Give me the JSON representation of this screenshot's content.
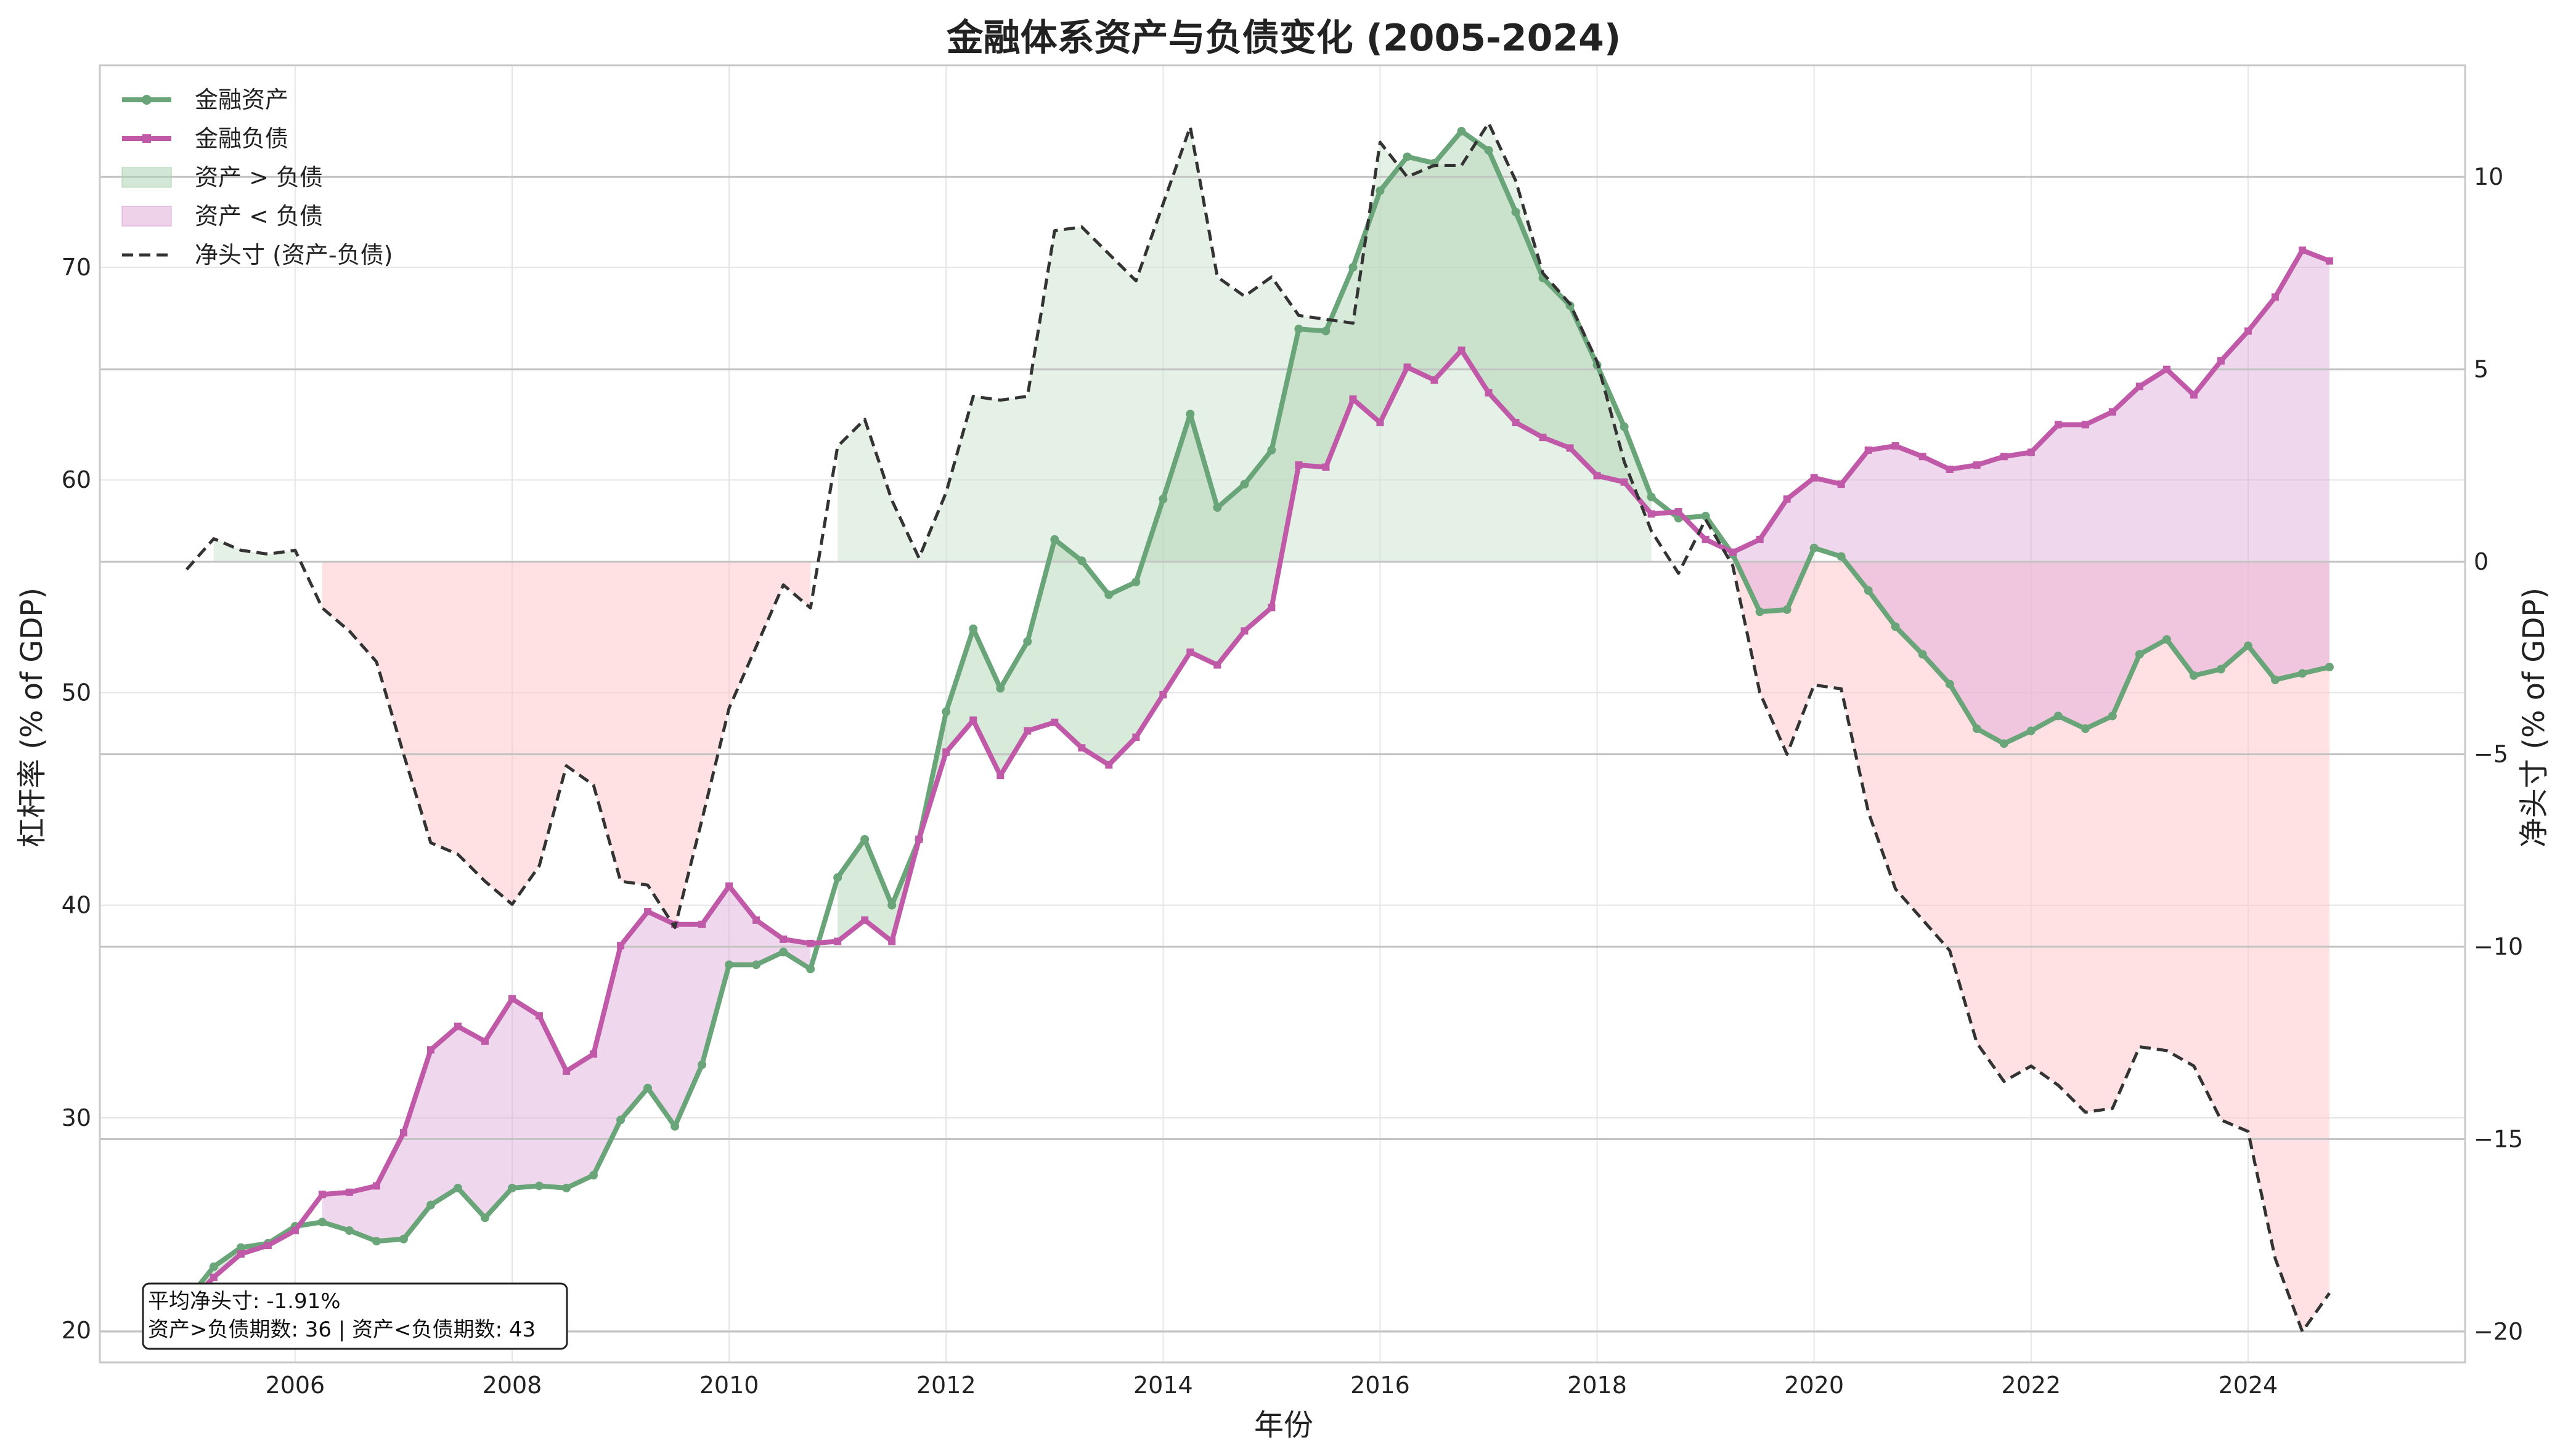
{
  "chart_data": {
    "type": "line",
    "title": "金融体系资产与负债变化 (2005-2024)",
    "xlabel": "年份",
    "ylabel": "杠杆率 (% of GDP)",
    "y2label": "净头寸 (% of GDP)",
    "xlim": [
      2004.2,
      2026.0
    ],
    "ylim": [
      18.5,
      79.5
    ],
    "y2lim": [
      -20.8,
      12.9
    ],
    "xticks": [
      2006,
      2008,
      2010,
      2012,
      2014,
      2016,
      2018,
      2020,
      2022,
      2024
    ],
    "yticks": [
      20,
      30,
      40,
      50,
      60,
      70
    ],
    "y2ticks": [
      -20,
      -15,
      -10,
      -5,
      0,
      5,
      10
    ],
    "grid": true,
    "legend_position": "top-left",
    "x": [
      2005.0,
      2005.25,
      2005.5,
      2005.75,
      2006.0,
      2006.25,
      2006.5,
      2006.75,
      2007.0,
      2007.25,
      2007.5,
      2007.75,
      2008.0,
      2008.25,
      2008.5,
      2008.75,
      2009.0,
      2009.25,
      2009.5,
      2009.75,
      2010.0,
      2010.25,
      2010.5,
      2010.75,
      2011.0,
      2011.25,
      2011.5,
      2011.75,
      2012.0,
      2012.25,
      2012.5,
      2012.75,
      2013.0,
      2013.25,
      2013.5,
      2013.75,
      2014.0,
      2014.25,
      2014.5,
      2014.75,
      2015.0,
      2015.25,
      2015.5,
      2015.75,
      2016.0,
      2016.25,
      2016.5,
      2016.75,
      2017.0,
      2017.25,
      2017.5,
      2017.75,
      2018.0,
      2018.25,
      2018.5,
      2018.75,
      2019.0,
      2019.25,
      2019.5,
      2019.75,
      2020.0,
      2020.25,
      2020.5,
      2020.75,
      2021.0,
      2021.25,
      2021.5,
      2021.75,
      2022.0,
      2022.25,
      2022.5,
      2022.75,
      2023.0,
      2023.25,
      2023.5,
      2023.75,
      2024.0,
      2024.25,
      2024.5,
      2024.75
    ],
    "series": [
      {
        "name": "金融资产",
        "color": "#6aa57a",
        "axis": "left",
        "values": [
          21.4,
          23.0,
          23.9,
          24.1,
          24.9,
          25.1,
          24.7,
          24.2,
          24.3,
          25.9,
          26.7,
          25.3,
          26.7,
          26.8,
          26.7,
          27.3,
          29.9,
          31.4,
          29.6,
          32.5,
          37.2,
          37.2,
          37.8,
          37.0,
          41.3,
          43.1,
          40.0,
          43.1,
          49.1,
          53.0,
          50.2,
          52.4,
          57.2,
          56.2,
          54.6,
          55.2,
          59.1,
          63.1,
          58.7,
          59.8,
          61.4,
          67.1,
          67.0,
          70.0,
          73.6,
          75.2,
          74.9,
          76.4,
          75.5,
          72.6,
          69.5,
          68.2,
          65.4,
          62.5,
          59.2,
          58.2,
          58.3,
          56.5,
          53.8,
          53.9,
          56.8,
          56.4,
          54.8,
          53.1,
          51.8,
          50.4,
          48.3,
          47.6,
          48.2,
          48.9,
          48.3,
          48.9,
          51.8,
          52.5,
          50.8,
          51.1,
          52.2,
          50.6,
          50.9,
          51.2
        ]
      },
      {
        "name": "金融负债",
        "color": "#c05aa8",
        "axis": "left",
        "values": [
          21.2,
          22.5,
          23.6,
          24.0,
          24.7,
          26.4,
          26.5,
          26.8,
          29.3,
          33.2,
          34.3,
          33.6,
          35.6,
          34.8,
          32.2,
          33.0,
          38.1,
          39.7,
          39.1,
          39.1,
          40.9,
          39.3,
          38.4,
          38.2,
          38.3,
          39.3,
          38.3,
          43.1,
          47.2,
          48.7,
          46.1,
          48.2,
          48.6,
          47.4,
          46.6,
          47.9,
          49.9,
          51.9,
          51.3,
          52.9,
          54.0,
          60.7,
          60.6,
          63.8,
          62.7,
          65.3,
          64.7,
          66.1,
          64.1,
          62.7,
          62.0,
          61.5,
          60.2,
          59.9,
          58.4,
          58.5,
          57.2,
          56.6,
          57.2,
          59.1,
          60.1,
          59.8,
          61.4,
          61.6,
          61.1,
          60.5,
          60.7,
          61.1,
          61.3,
          62.6,
          62.6,
          63.2,
          64.4,
          65.2,
          64.0,
          65.6,
          67.0,
          68.6,
          70.8,
          70.3
        ]
      },
      {
        "name": "净头寸 (资产-负债)",
        "color": "#333333",
        "axis": "right",
        "dashed": true,
        "values": [
          -0.2,
          0.6,
          0.3,
          0.2,
          0.3,
          -1.2,
          -1.8,
          -2.6,
          -5.0,
          -7.3,
          -7.6,
          -8.3,
          -8.9,
          -7.9,
          -5.3,
          -5.8,
          -8.3,
          -8.4,
          -9.5,
          -6.7,
          -3.8,
          -2.2,
          -0.6,
          -1.2,
          3.0,
          3.7,
          1.6,
          0.1,
          1.8,
          4.3,
          4.2,
          4.3,
          8.6,
          8.7,
          8.0,
          7.3,
          9.3,
          11.3,
          7.4,
          6.9,
          7.4,
          6.4,
          6.3,
          6.2,
          10.9,
          10.0,
          10.3,
          10.3,
          11.4,
          9.9,
          7.5,
          6.7,
          5.2,
          2.6,
          0.8,
          -0.3,
          1.1,
          -0.1,
          -3.4,
          -5.0,
          -3.2,
          -3.3,
          -6.5,
          -8.5,
          -9.3,
          -10.1,
          -12.5,
          -13.5,
          -13.1,
          -13.6,
          -14.3,
          -14.2,
          -12.6,
          -12.7,
          -13.1,
          -14.5,
          -14.8,
          -18.1,
          -20.0,
          -19.0
        ]
      }
    ],
    "legend": [
      "金融资产",
      "金融负债",
      "资产 > 负债",
      "资产 < 负债",
      "净头寸 (资产-负债)"
    ],
    "fill_colors": {
      "asset_gt_liability": "#a8d0ae",
      "asset_lt_liability": "#dba6d6",
      "net_positive": "#cfe6d1",
      "net_negative": "#ffc8cd"
    },
    "stats": {
      "line1": "平均净头寸: -1.91%",
      "line2": "资产>负债期数: 36 | 资产<负债期数: 43"
    }
  }
}
